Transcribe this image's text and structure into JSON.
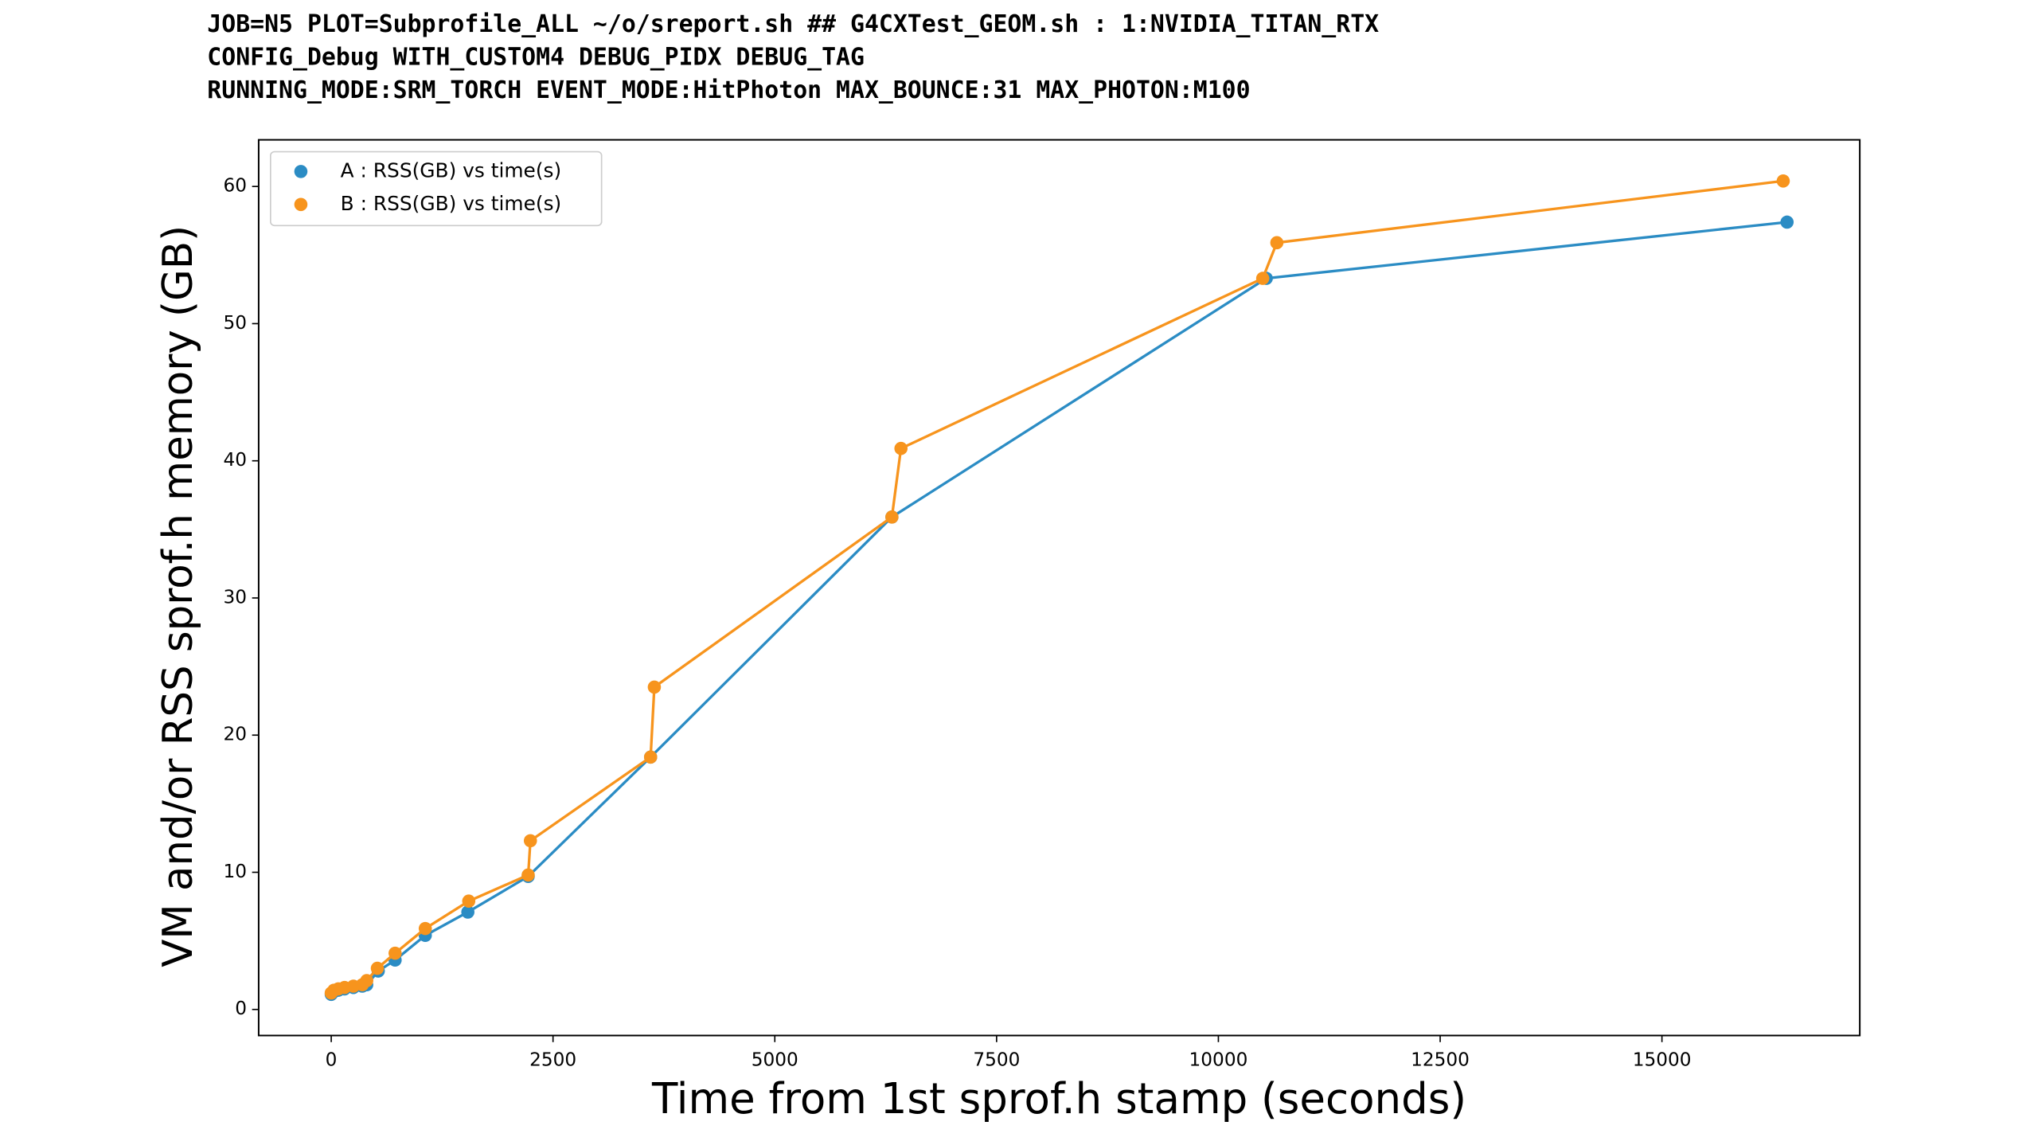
{
  "chart_data": {
    "type": "line",
    "title": [
      "JOB=N5 PLOT=Subprofile_ALL ~/o/sreport.sh ## G4CXTest_GEOM.sh : 1:NVIDIA_TITAN_RTX",
      "CONFIG_Debug WITH_CUSTOM4 DEBUG_PIDX DEBUG_TAG",
      "RUNNING_MODE:SRM_TORCH EVENT_MODE:HitPhoton MAX_BOUNCE:31 MAX_PHOTON:M100"
    ],
    "x_label": "Time from 1st sprof.h stamp (seconds)",
    "y_label": "VM and/or RSS sprof.h memory (GB)",
    "xlim": [
      -818,
      17230
    ],
    "ylim": [
      -1.9,
      63.4
    ],
    "xticks": [
      0,
      2500,
      5000,
      7500,
      10000,
      12500,
      15000
    ],
    "yticks": [
      0,
      10,
      20,
      30,
      40,
      50,
      60
    ],
    "legend": "upper left",
    "series": [
      {
        "name": "A : RSS(GB) vs time(s)",
        "color": "#2b8cc4",
        "x": [
          0,
          30,
          80,
          150,
          250,
          350,
          400,
          530,
          720,
          1060,
          1540,
          2220,
          3600,
          6320,
          10540,
          16410
        ],
        "values": [
          1.1,
          1.3,
          1.4,
          1.5,
          1.6,
          1.7,
          1.8,
          2.8,
          3.6,
          5.4,
          7.1,
          9.7,
          18.4,
          35.9,
          53.3,
          57.4
        ]
      },
      {
        "name": "B : RSS(GB) vs time(s)",
        "color": "#f7941d",
        "x": [
          0,
          30,
          80,
          150,
          250,
          350,
          400,
          520,
          720,
          1060,
          1550,
          2220,
          2245,
          3600,
          3642,
          6320,
          6422,
          10500,
          10659,
          16367
        ],
        "values": [
          1.2,
          1.4,
          1.5,
          1.6,
          1.7,
          1.8,
          2.1,
          3.0,
          4.1,
          5.9,
          7.9,
          9.8,
          12.3,
          18.4,
          23.5,
          35.9,
          40.9,
          53.3,
          55.9,
          60.4
        ]
      }
    ]
  }
}
